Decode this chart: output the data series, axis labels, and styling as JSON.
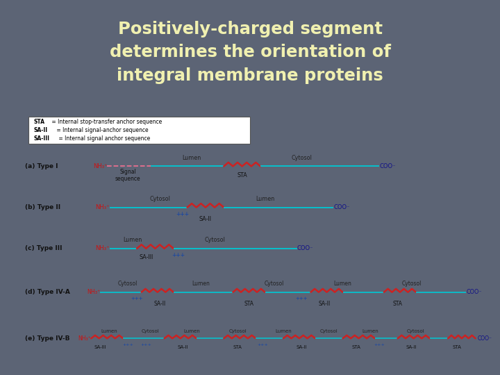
{
  "title": "Positively-charged segment\ndetermines the orientation of\nintegral membrane proteins",
  "title_color": "#f0f0b0",
  "bg_color": "#5c6475",
  "panel_bg": "#f0eeea",
  "legend_lines": [
    [
      "STA",
      " = Internal stop-transfer anchor sequence"
    ],
    [
      "SA-II",
      " = Internal signal-anchor sequence"
    ],
    [
      "SA-III",
      " = Internal signal anchor sequence"
    ]
  ],
  "line_color_cyan": "#00c8d4",
  "line_color_pink": "#e87090",
  "zigzag_color": "#cc2222",
  "text_dark": "#222222",
  "nh3_color": "#cc1111",
  "coo_color": "#111188",
  "plus_color": "#1144aa"
}
